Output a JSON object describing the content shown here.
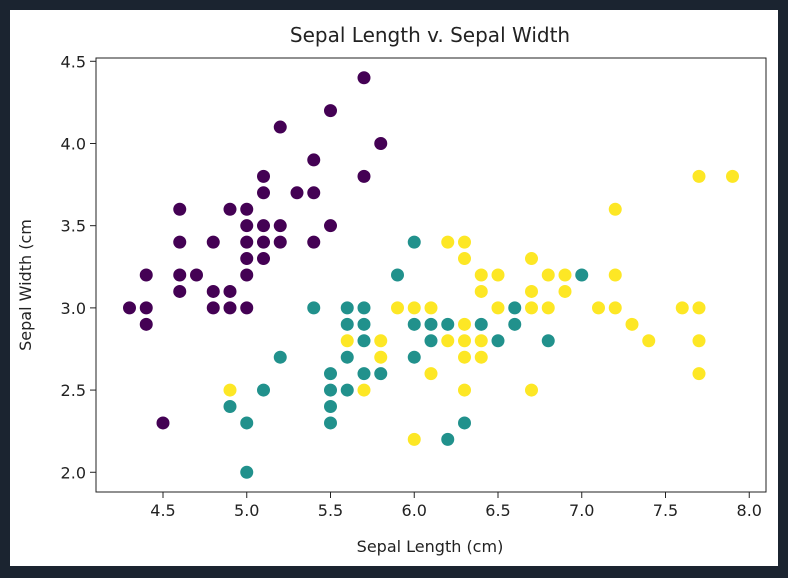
{
  "chart_data": {
    "type": "scatter",
    "title": "Sepal Length v. Sepal Width",
    "xlabel": "Sepal Length (cm)",
    "ylabel": "Sepal Width (cm",
    "xlim": [
      4.1,
      8.1
    ],
    "ylim": [
      1.88,
      4.52
    ],
    "xticks": [
      4.5,
      5.0,
      5.5,
      6.0,
      6.5,
      7.0,
      7.5,
      8.0
    ],
    "xtick_labels": [
      "4.5",
      "5.0",
      "5.5",
      "6.0",
      "6.5",
      "7.0",
      "7.5",
      "8.0"
    ],
    "yticks": [
      2.0,
      2.5,
      3.0,
      3.5,
      4.0,
      4.5
    ],
    "ytick_labels": [
      "2.0",
      "2.5",
      "3.0",
      "3.5",
      "4.0",
      "4.5"
    ],
    "grid": false,
    "series": [
      {
        "color": "#440154",
        "x": [
          5.1,
          4.9,
          4.7,
          4.6,
          5.0,
          5.4,
          4.6,
          5.0,
          4.4,
          4.9,
          5.4,
          4.8,
          4.8,
          4.3,
          5.8,
          5.7,
          5.4,
          5.1,
          5.7,
          5.1,
          5.4,
          5.1,
          4.6,
          5.1,
          4.8,
          5.0,
          5.0,
          5.2,
          5.2,
          4.7,
          4.8,
          5.4,
          5.2,
          5.5,
          4.9,
          5.0,
          5.5,
          4.9,
          4.4,
          5.1,
          5.0,
          4.5,
          4.4,
          5.0,
          5.1,
          4.8,
          5.1,
          4.6,
          5.3,
          5.0
        ],
        "y": [
          3.5,
          3.0,
          3.2,
          3.1,
          3.6,
          3.9,
          3.4,
          3.4,
          2.9,
          3.1,
          3.7,
          3.4,
          3.0,
          3.0,
          4.0,
          4.4,
          3.9,
          3.5,
          3.8,
          3.8,
          3.4,
          3.7,
          3.6,
          3.3,
          3.4,
          3.0,
          3.4,
          3.5,
          3.4,
          3.2,
          3.1,
          3.4,
          4.1,
          4.2,
          3.1,
          3.2,
          3.5,
          3.6,
          3.0,
          3.4,
          3.5,
          2.3,
          3.2,
          3.5,
          3.8,
          3.0,
          3.8,
          3.2,
          3.7,
          3.3
        ]
      },
      {
        "color": "#21918c",
        "x": [
          7.0,
          6.4,
          6.9,
          5.5,
          6.5,
          5.7,
          6.3,
          4.9,
          6.6,
          5.2,
          5.0,
          5.9,
          6.0,
          6.1,
          5.6,
          6.7,
          5.6,
          5.8,
          6.2,
          5.6,
          5.9,
          6.1,
          6.3,
          6.1,
          6.4,
          6.6,
          6.8,
          6.7,
          6.0,
          5.7,
          5.5,
          5.5,
          5.8,
          6.0,
          5.4,
          6.0,
          6.7,
          6.3,
          5.6,
          5.5,
          5.5,
          6.1,
          5.8,
          5.0,
          5.6,
          5.7,
          5.7,
          6.2,
          5.1,
          5.7
        ],
        "y": [
          3.2,
          3.2,
          3.1,
          2.3,
          2.8,
          2.8,
          3.3,
          2.4,
          2.9,
          2.7,
          2.0,
          3.0,
          2.2,
          2.9,
          2.9,
          3.1,
          3.0,
          2.7,
          2.2,
          2.5,
          3.2,
          2.8,
          2.5,
          2.8,
          2.9,
          3.0,
          2.8,
          3.0,
          2.9,
          2.6,
          2.4,
          2.4,
          2.7,
          2.7,
          3.0,
          3.4,
          3.1,
          2.3,
          3.0,
          2.5,
          2.6,
          3.0,
          2.6,
          2.3,
          2.7,
          3.0,
          2.9,
          2.9,
          2.5,
          2.8
        ]
      },
      {
        "color": "#fde725",
        "x": [
          6.3,
          5.8,
          7.1,
          6.3,
          6.5,
          7.6,
          4.9,
          7.3,
          6.7,
          7.2,
          6.5,
          6.4,
          6.8,
          5.7,
          5.8,
          6.4,
          6.5,
          7.7,
          7.7,
          6.0,
          6.9,
          5.6,
          7.7,
          6.3,
          6.7,
          7.2,
          6.2,
          6.1,
          6.4,
          7.2,
          7.4,
          7.9,
          6.4,
          6.3,
          6.1,
          7.7,
          6.3,
          6.4,
          6.0,
          6.9,
          6.7,
          6.9,
          5.8,
          6.8,
          6.7,
          6.7,
          6.3,
          6.5,
          6.2,
          5.9
        ],
        "y": [
          3.3,
          2.7,
          3.0,
          2.9,
          3.0,
          3.0,
          2.5,
          2.9,
          2.5,
          3.6,
          3.2,
          2.7,
          3.0,
          2.5,
          2.8,
          3.2,
          3.0,
          3.8,
          2.6,
          2.2,
          3.2,
          2.8,
          2.8,
          2.7,
          3.3,
          3.2,
          2.8,
          3.0,
          2.8,
          3.0,
          2.8,
          3.8,
          2.8,
          2.8,
          2.6,
          3.0,
          3.4,
          3.1,
          3.0,
          3.1,
          3.1,
          3.1,
          2.7,
          3.2,
          3.3,
          3.0,
          2.5,
          3.0,
          3.4,
          3.0
        ]
      }
    ]
  }
}
